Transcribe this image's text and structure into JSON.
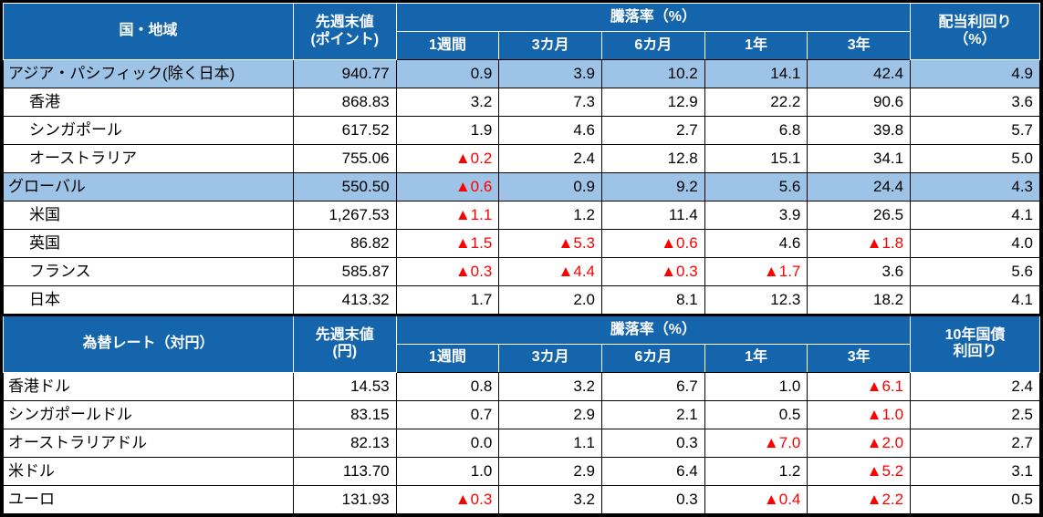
{
  "colors": {
    "header_bg": "#1565AD",
    "header_text": "#FFFFFF",
    "highlight_bg": "#9DC3E6",
    "negative_text": "#FF0000",
    "border": "#000000"
  },
  "chart_data": [
    {
      "type": "table",
      "title": "国・地域 株価指数サマリー",
      "header": {
        "name_label": "国・地域",
        "value_line1": "先週末値",
        "value_line2": "(ポイント)",
        "change_label": "騰落率（%）",
        "periods": [
          "1週間",
          "3カ月",
          "6カ月",
          "1年",
          "3年"
        ],
        "extra_line1": "配当利回り",
        "extra_line2": "（%）"
      },
      "rows": [
        {
          "name": "アジア・パシフィック(除く日本)",
          "value": "940.77",
          "changes": [
            "0.9",
            "3.9",
            "10.2",
            "14.1",
            "42.4"
          ],
          "extra": "4.9"
        },
        {
          "name": "香港",
          "value": "868.83",
          "changes": [
            "3.2",
            "7.3",
            "12.9",
            "22.2",
            "90.6"
          ],
          "extra": "3.6"
        },
        {
          "name": "シンガポール",
          "value": "617.52",
          "changes": [
            "1.9",
            "4.6",
            "2.7",
            "6.8",
            "39.8"
          ],
          "extra": "5.7"
        },
        {
          "name": "オーストラリア",
          "value": "755.06",
          "changes": [
            "▲0.2",
            "2.4",
            "12.8",
            "15.1",
            "34.1"
          ],
          "extra": "5.0"
        },
        {
          "name": "グローバル",
          "value": "550.50",
          "changes": [
            "▲0.6",
            "0.9",
            "9.2",
            "5.6",
            "24.4"
          ],
          "extra": "4.3"
        },
        {
          "name": "米国",
          "value": "1,267.53",
          "changes": [
            "▲1.1",
            "1.2",
            "11.4",
            "3.9",
            "26.5"
          ],
          "extra": "4.1"
        },
        {
          "name": "英国",
          "value": "86.82",
          "changes": [
            "▲1.5",
            "▲5.3",
            "▲0.6",
            "4.6",
            "▲1.8"
          ],
          "extra": "4.0"
        },
        {
          "name": "フランス",
          "value": "585.87",
          "changes": [
            "▲0.3",
            "▲4.4",
            "▲0.3",
            "▲1.7",
            "3.6"
          ],
          "extra": "5.6"
        },
        {
          "name": "日本",
          "value": "413.32",
          "changes": [
            "1.7",
            "2.0",
            "8.1",
            "12.3",
            "18.2"
          ],
          "extra": "4.1"
        }
      ]
    },
    {
      "type": "table",
      "title": "為替レート（対円）サマリー",
      "header": {
        "name_label": "為替レート（対円）",
        "value_line1": "先週末値",
        "value_line2": "(円)",
        "change_label": "騰落率（%）",
        "periods": [
          "1週間",
          "3カ月",
          "6カ月",
          "1年",
          "3年"
        ],
        "extra_line1": "10年国債",
        "extra_line2": "利回り"
      },
      "rows": [
        {
          "name": "香港ドル",
          "value": "14.53",
          "changes": [
            "0.8",
            "3.2",
            "6.7",
            "1.0",
            "▲6.1"
          ],
          "extra": "2.4"
        },
        {
          "name": "シンガポールドル",
          "value": "83.15",
          "changes": [
            "0.7",
            "2.9",
            "2.1",
            "0.5",
            "▲1.0"
          ],
          "extra": "2.5"
        },
        {
          "name": "オーストラリアドル",
          "value": "82.13",
          "changes": [
            "0.0",
            "1.1",
            "0.3",
            "▲7.0",
            "▲2.0"
          ],
          "extra": "2.7"
        },
        {
          "name": "米ドル",
          "value": "113.70",
          "changes": [
            "1.0",
            "2.9",
            "6.4",
            "1.2",
            "▲5.2"
          ],
          "extra": "3.1"
        },
        {
          "name": "ユーロ",
          "value": "131.93",
          "changes": [
            "▲0.3",
            "3.2",
            "0.3",
            "▲0.4",
            "▲2.2"
          ],
          "extra": "0.5"
        }
      ]
    }
  ]
}
